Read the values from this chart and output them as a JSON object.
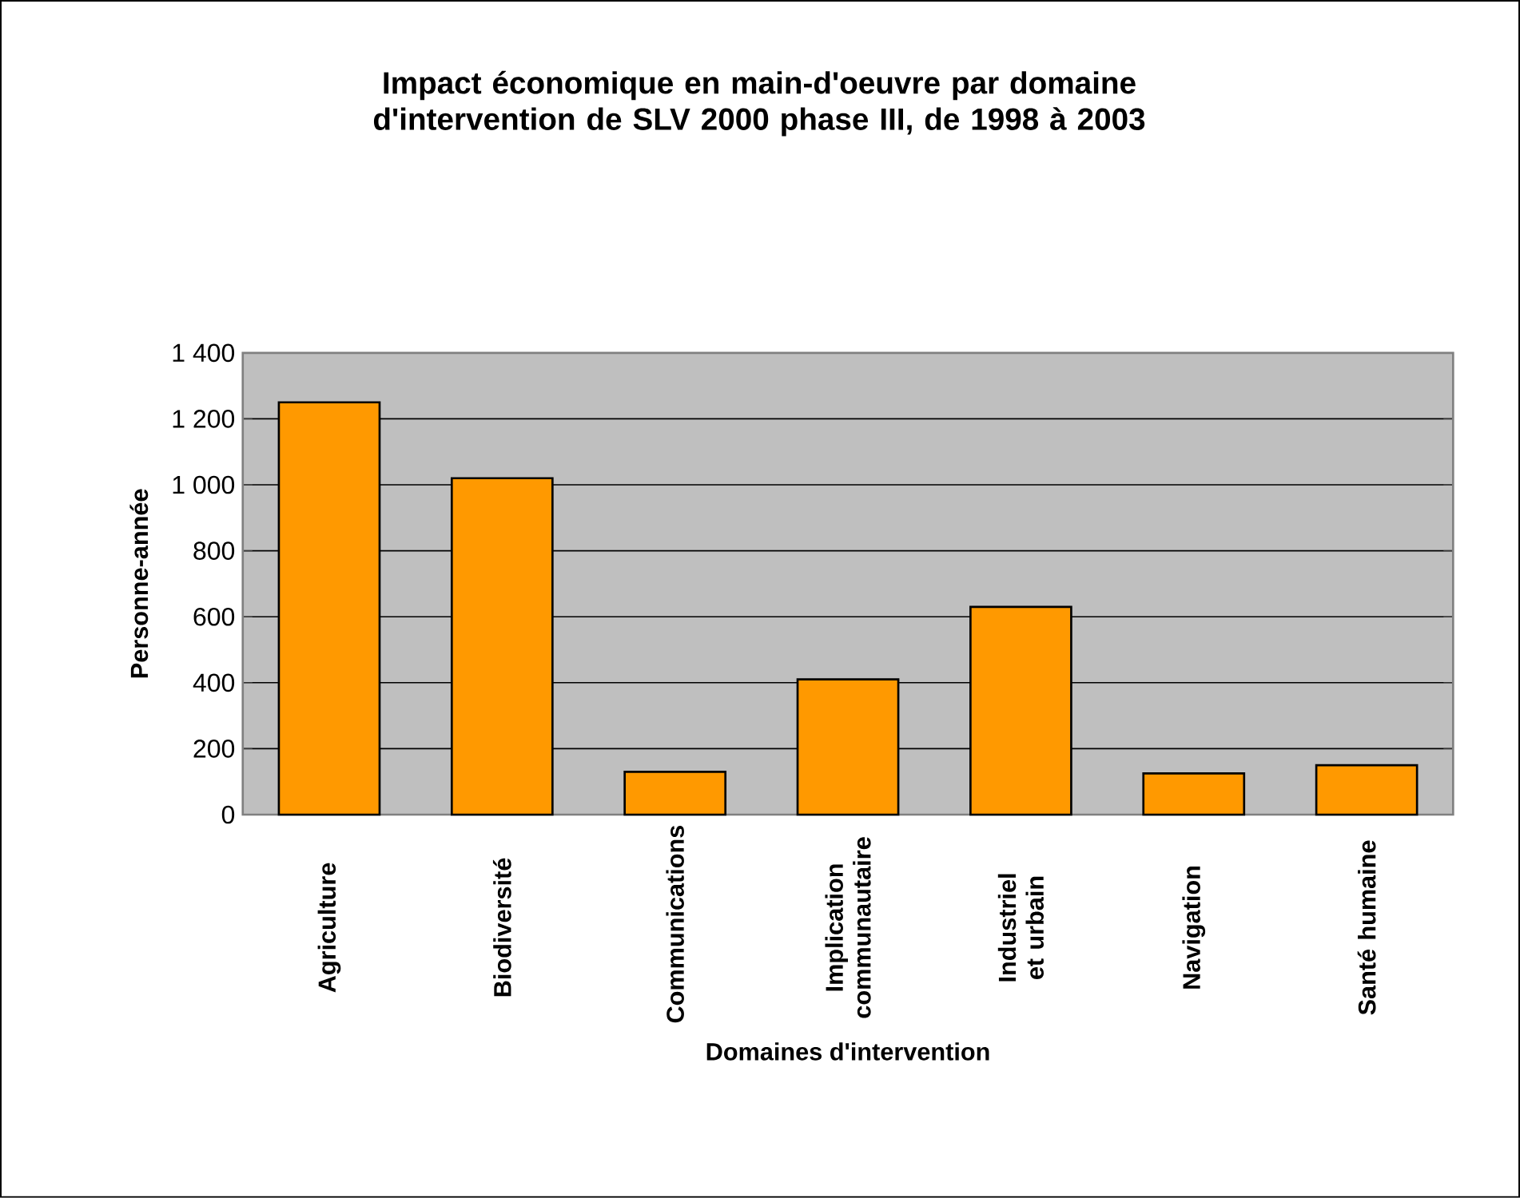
{
  "chart_data": {
    "type": "bar",
    "title": "Impact économique en main-d'oeuvre par domaine d'intervention de SLV 2000 phase III, de 1998 à 2003",
    "xlabel": "Domaines d'intervention",
    "ylabel": "Personne-année",
    "categories": [
      "Agriculture",
      "Biodiversité",
      "Communications",
      "Implication communautaire",
      "Industriel et urbain",
      "Navigation",
      "Santé humaine"
    ],
    "values": [
      1250,
      1020,
      130,
      410,
      630,
      125,
      150
    ],
    "color": "#ff9900",
    "ylim": [
      0,
      1400
    ],
    "yticks": [
      0,
      200,
      400,
      600,
      800,
      {
        "value": 1000,
        "label": "1 000"
      },
      {
        "value": 1200,
        "label": "1 200"
      },
      {
        "value": 1400,
        "label": "1 400"
      }
    ],
    "grid": "y"
  }
}
